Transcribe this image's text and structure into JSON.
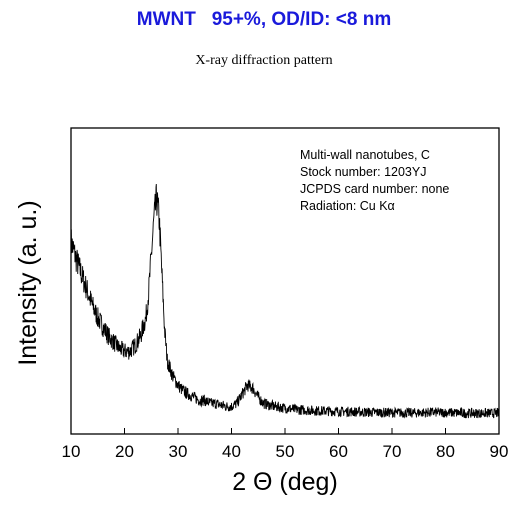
{
  "title": "MWNT   95+%, OD/ID: <8 nm",
  "subtitle": "X-ray diffraction pattern",
  "chart_data": {
    "type": "line",
    "title": "MWNT   95+%, OD/ID: <8 nm",
    "subtitle": "X-ray diffraction pattern",
    "xlabel": "2 Θ (deg)",
    "ylabel": "Intensity (a. u.)",
    "xlim": [
      10,
      90
    ],
    "ylim": [
      0,
      1
    ],
    "xticks": [
      10,
      20,
      30,
      40,
      50,
      60,
      70,
      80,
      90
    ],
    "yticks_labeled": false,
    "grid": false,
    "legend": "none",
    "annotations": [
      "Multi-wall nanotubes, C",
      "Stock number: 1203YJ",
      "JCPDS card number: none",
      "Radiation: Cu Kα"
    ],
    "series": [
      {
        "color": "#000000",
        "x": [
          10,
          11,
          12,
          13,
          14,
          15,
          16,
          17,
          18,
          19,
          20,
          21,
          22,
          23,
          24,
          24.5,
          25,
          25.5,
          26,
          26.5,
          27,
          27.5,
          28,
          29,
          30,
          31,
          32,
          33,
          34,
          35,
          36,
          37,
          38,
          39,
          40,
          41,
          42,
          43,
          44,
          45,
          46,
          47,
          48,
          50,
          52,
          54,
          56,
          58,
          60,
          62,
          64,
          66,
          68,
          70,
          72,
          74,
          76,
          78,
          80,
          82,
          84,
          86,
          88,
          90
        ],
        "y": [
          0.63,
          0.57,
          0.52,
          0.47,
          0.42,
          0.38,
          0.35,
          0.32,
          0.3,
          0.28,
          0.27,
          0.27,
          0.29,
          0.32,
          0.38,
          0.46,
          0.58,
          0.7,
          0.77,
          0.7,
          0.52,
          0.34,
          0.24,
          0.19,
          0.16,
          0.14,
          0.13,
          0.12,
          0.11,
          0.11,
          0.1,
          0.1,
          0.095,
          0.09,
          0.09,
          0.1,
          0.13,
          0.16,
          0.15,
          0.12,
          0.1,
          0.095,
          0.09,
          0.085,
          0.08,
          0.078,
          0.076,
          0.075,
          0.074,
          0.073,
          0.072,
          0.071,
          0.07,
          0.07,
          0.069,
          0.069,
          0.07,
          0.071,
          0.07,
          0.069,
          0.068,
          0.068,
          0.068,
          0.068
        ]
      }
    ]
  }
}
